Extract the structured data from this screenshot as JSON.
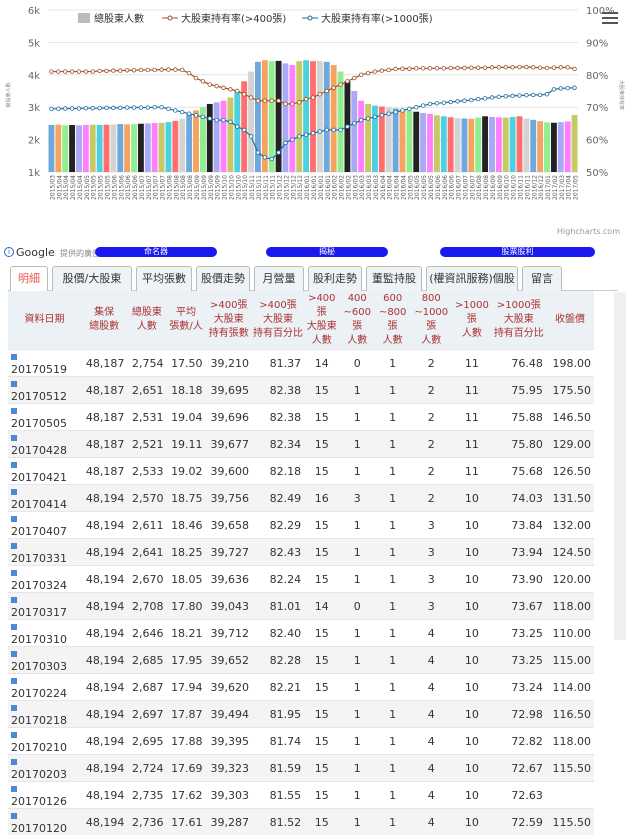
{
  "chart_data": {
    "type": "bar",
    "series": [
      {
        "name": "總股東人數",
        "type": "bar",
        "axis": "left",
        "values": [
          2450,
          2460,
          2440,
          2450,
          2440,
          2450,
          2460,
          2450,
          2460,
          2470,
          2480,
          2470,
          2480,
          2490,
          2500,
          2510,
          2520,
          2540,
          2580,
          2640,
          2780,
          2900,
          3000,
          3100,
          3150,
          3200,
          3300,
          3500,
          3800,
          4100,
          4400,
          4450,
          4420,
          4430,
          4350,
          4300,
          4420,
          4450,
          4420,
          4430,
          4400,
          4300,
          4100,
          3800,
          3500,
          3200,
          3100,
          3050,
          3020,
          2990,
          2960,
          2940,
          2900,
          2860,
          2820,
          2790,
          2750,
          2720,
          2690,
          2660,
          2650,
          2640,
          2680,
          2720,
          2700,
          2690,
          2680,
          2700,
          2720,
          2650,
          2610,
          2570,
          2530,
          2520,
          2540,
          2560,
          2760
        ]
      },
      {
        "name": "大股東持有率(>400張)",
        "type": "line",
        "axis": "right",
        "values": [
          81,
          81,
          81,
          81,
          81,
          81,
          81,
          81.2,
          81.2,
          81.3,
          81.3,
          81.4,
          81.4,
          81.5,
          81.5,
          81.5,
          81.6,
          81.6,
          81.6,
          81.5,
          80.5,
          79,
          78,
          77,
          76.5,
          76,
          75.5,
          75,
          74,
          73,
          72,
          72,
          72,
          72,
          71,
          71,
          71.5,
          72.5,
          73,
          74,
          75,
          76,
          77,
          78,
          79,
          80,
          80.5,
          81,
          81.3,
          81.5,
          81.8,
          81.9,
          81.9,
          82,
          82,
          82,
          82,
          82,
          82.1,
          82.1,
          82.1,
          82.2,
          82.2,
          82.2,
          82.3,
          82.3,
          82.3,
          82.3,
          82.4,
          82.4,
          82.3,
          82.2,
          82.1,
          82.2,
          82.3,
          82.3,
          81.8
        ]
      },
      {
        "name": "大股東持有率(>1000張)",
        "type": "line",
        "axis": "right",
        "values": [
          69.5,
          69.5,
          69.6,
          69.6,
          69.6,
          69.7,
          69.7,
          69.7,
          69.8,
          69.8,
          69.8,
          69.9,
          69.9,
          69.9,
          69.9,
          70,
          70,
          69.5,
          69,
          68.5,
          68,
          67.5,
          67,
          66.5,
          66,
          66,
          65.5,
          64,
          63,
          61,
          56,
          54.5,
          54,
          56,
          59,
          60,
          61,
          61.5,
          62,
          62.5,
          63,
          63,
          63,
          64,
          65,
          66,
          66.5,
          67,
          67.5,
          68,
          68.5,
          69,
          69.5,
          70,
          70.5,
          71,
          71.2,
          71.4,
          71.6,
          71.8,
          72,
          72.2,
          72.5,
          72.7,
          73,
          73.2,
          73.4,
          73.5,
          73.6,
          73.7,
          73.8,
          73.8,
          74,
          75.5,
          75.8,
          75.9,
          76
        ]
      }
    ],
    "categories": [
      "2015/03",
      "2015/04",
      "2015/04",
      "2015/04",
      "2015/04",
      "2015/05",
      "2015/05",
      "2015/05",
      "2015/05",
      "2015/06",
      "2015/06",
      "2015/06",
      "2015/06",
      "2015/07",
      "2015/07",
      "2015/07",
      "2015/07",
      "2015/08",
      "2015/08",
      "2015/08",
      "2015/08",
      "2015/09",
      "2015/09",
      "2015/09",
      "2015/09",
      "2015/10",
      "2015/10",
      "2015/10",
      "2015/10",
      "2015/11",
      "2015/11",
      "2015/11",
      "2015/11",
      "2015/12",
      "2015/12",
      "2015/12",
      "2015/12",
      "2016/01",
      "2016/01",
      "2016/01",
      "2016/01",
      "2016/02",
      "2016/02",
      "2016/02",
      "2016/03",
      "2016/03",
      "2016/03",
      "2016/03",
      "2016/04",
      "2016/04",
      "2016/04",
      "2016/04",
      "2016/05",
      "2016/05",
      "2016/05",
      "2016/05",
      "2016/06",
      "2016/06",
      "2016/06",
      "2016/07",
      "2016/07",
      "2016/07",
      "2016/08",
      "2016/08",
      "2016/09",
      "2016/09",
      "2016/10",
      "2016/10",
      "2016/11",
      "2016/11",
      "2016/12",
      "2016/12",
      "2017/01",
      "2017/02",
      "2017/03",
      "2017/04",
      "2017/05"
    ],
    "yleft_ticks": [
      "1k",
      "2k",
      "3k",
      "4k",
      "5k",
      "6k"
    ],
    "yright_ticks": [
      "50%",
      "60%",
      "70%",
      "80%",
      "90%",
      "100%"
    ],
    "ylim_left": [
      1000,
      6000
    ],
    "ylim_right": [
      50,
      100
    ],
    "left_axis_label": "總股東人數",
    "right_axis_label": "大股東持有率",
    "credit": "Highcharts.com",
    "bar_colors": [
      "#6fa8dc",
      "#f4a460",
      "#90ee90",
      "#222222",
      "#a9a9f5",
      "#ff80ff",
      "#c8c864",
      "#4dd0e1",
      "#ff6f6f",
      "#d3d3d3"
    ],
    "line_colors": [
      "#a0522d",
      "#1f6f9f"
    ],
    "legend_position": "top"
  },
  "google": {
    "label": "Google",
    "sub": "提供的廣告",
    "pills": [
      "命名器",
      "揭秘",
      "股票股利"
    ]
  },
  "tabs": [
    "明細",
    "股價/大股東",
    "平均張數",
    "股價走勢",
    "月營量",
    "股利走勢",
    "董監持股",
    "(權資訊服務)個股",
    "留言"
  ],
  "table": {
    "headers": [
      "資料日期",
      "集保\n總股數",
      "總股東\n人數",
      "平均\n張數/人",
      ">400張\n大股東\n持有張數",
      ">400張\n大股東\n持有百分比",
      ">400張\n大股東\n人數",
      "400\n~600張\n人數",
      "600\n~800張\n人數",
      "800\n~1000張\n人數",
      ">1000張\n人數",
      ">1000張\n大股東\n持有百分比",
      "收盤價"
    ],
    "rows": [
      [
        "20170519",
        "48,187",
        "2,754",
        "17.50",
        "39,210",
        "81.37",
        "14",
        "0",
        "1",
        "2",
        "11",
        "76.48",
        "198.00"
      ],
      [
        "20170512",
        "48,187",
        "2,651",
        "18.18",
        "39,695",
        "82.38",
        "15",
        "1",
        "1",
        "2",
        "11",
        "75.95",
        "175.50"
      ],
      [
        "20170505",
        "48,187",
        "2,531",
        "19.04",
        "39,696",
        "82.38",
        "15",
        "1",
        "1",
        "2",
        "11",
        "75.88",
        "146.50"
      ],
      [
        "20170428",
        "48,187",
        "2,521",
        "19.11",
        "39,677",
        "82.34",
        "15",
        "1",
        "1",
        "2",
        "11",
        "75.80",
        "129.00"
      ],
      [
        "20170421",
        "48,187",
        "2,533",
        "19.02",
        "39,600",
        "82.18",
        "15",
        "1",
        "1",
        "2",
        "11",
        "75.68",
        "126.50"
      ],
      [
        "20170414",
        "48,194",
        "2,570",
        "18.75",
        "39,756",
        "82.49",
        "16",
        "3",
        "1",
        "2",
        "10",
        "74.03",
        "131.50"
      ],
      [
        "20170407",
        "48,194",
        "2,611",
        "18.46",
        "39,658",
        "82.29",
        "15",
        "1",
        "1",
        "3",
        "10",
        "73.84",
        "132.00"
      ],
      [
        "20170331",
        "48,194",
        "2,641",
        "18.25",
        "39,727",
        "82.43",
        "15",
        "1",
        "1",
        "3",
        "10",
        "73.94",
        "124.50"
      ],
      [
        "20170324",
        "48,194",
        "2,670",
        "18.05",
        "39,636",
        "82.24",
        "15",
        "1",
        "1",
        "3",
        "10",
        "73.90",
        "120.00"
      ],
      [
        "20170317",
        "48,194",
        "2,708",
        "17.80",
        "39,043",
        "81.01",
        "14",
        "0",
        "1",
        "3",
        "10",
        "73.67",
        "118.00"
      ],
      [
        "20170310",
        "48,194",
        "2,646",
        "18.21",
        "39,712",
        "82.40",
        "15",
        "1",
        "1",
        "4",
        "10",
        "73.25",
        "110.00"
      ],
      [
        "20170303",
        "48,194",
        "2,685",
        "17.95",
        "39,652",
        "82.28",
        "15",
        "1",
        "1",
        "4",
        "10",
        "73.25",
        "115.00"
      ],
      [
        "20170224",
        "48,194",
        "2,687",
        "17.94",
        "39,620",
        "82.21",
        "15",
        "1",
        "1",
        "4",
        "10",
        "73.24",
        "114.00"
      ],
      [
        "20170218",
        "48,194",
        "2,697",
        "17.87",
        "39,494",
        "81.95",
        "15",
        "1",
        "1",
        "4",
        "10",
        "72.98",
        "116.50"
      ],
      [
        "20170210",
        "48,194",
        "2,695",
        "17.88",
        "39,395",
        "81.74",
        "15",
        "1",
        "1",
        "4",
        "10",
        "72.82",
        "118.00"
      ],
      [
        "20170203",
        "48,194",
        "2,724",
        "17.69",
        "39,323",
        "81.59",
        "15",
        "1",
        "1",
        "4",
        "10",
        "72.67",
        "115.50"
      ],
      [
        "20170126",
        "48,194",
        "2,735",
        "17.62",
        "39,303",
        "81.55",
        "15",
        "1",
        "1",
        "4",
        "10",
        "72.63",
        ""
      ],
      [
        "20170120",
        "48,194",
        "2,736",
        "17.61",
        "39,287",
        "81.52",
        "15",
        "1",
        "1",
        "4",
        "10",
        "72.59",
        "115.50"
      ]
    ],
    "col_colors": [
      "k",
      "k",
      "k",
      "g",
      "k",
      "g",
      "g",
      "g",
      "k",
      "g",
      "k",
      "g",
      "r"
    ],
    "cell_colors": {
      "5": {
        "7": "r"
      },
      "9": {
        "6": "g",
        "9": "g"
      }
    }
  }
}
